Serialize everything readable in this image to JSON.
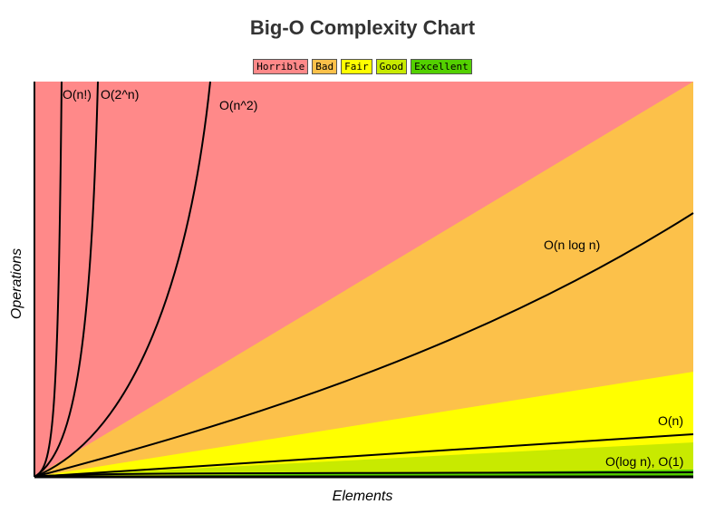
{
  "chart_data": {
    "type": "area",
    "title": "Big-O Complexity Chart",
    "xlabel": "Elements",
    "ylabel": "Operations",
    "legend": [
      {
        "label": "Horrible",
        "color": "#ff8989"
      },
      {
        "label": "Bad",
        "color": "#fcc14a"
      },
      {
        "label": "Fair",
        "color": "#ffff00"
      },
      {
        "label": "Good",
        "color": "#c8ea00"
      },
      {
        "label": "Excellent",
        "color": "#53d000"
      }
    ],
    "legend_placement": "top-center",
    "grid": false,
    "axis_ticks": false,
    "series": [
      {
        "name": "O(n!)",
        "function": "factorial"
      },
      {
        "name": "O(2^n)",
        "function": "exponential"
      },
      {
        "name": "O(n^2)",
        "function": "quadratic"
      },
      {
        "name": "O(n log n)",
        "function": "linearithmic"
      },
      {
        "name": "O(n)",
        "function": "linear"
      },
      {
        "name": "O(log n), O(1)",
        "function": "logarithmic_constant"
      }
    ]
  }
}
